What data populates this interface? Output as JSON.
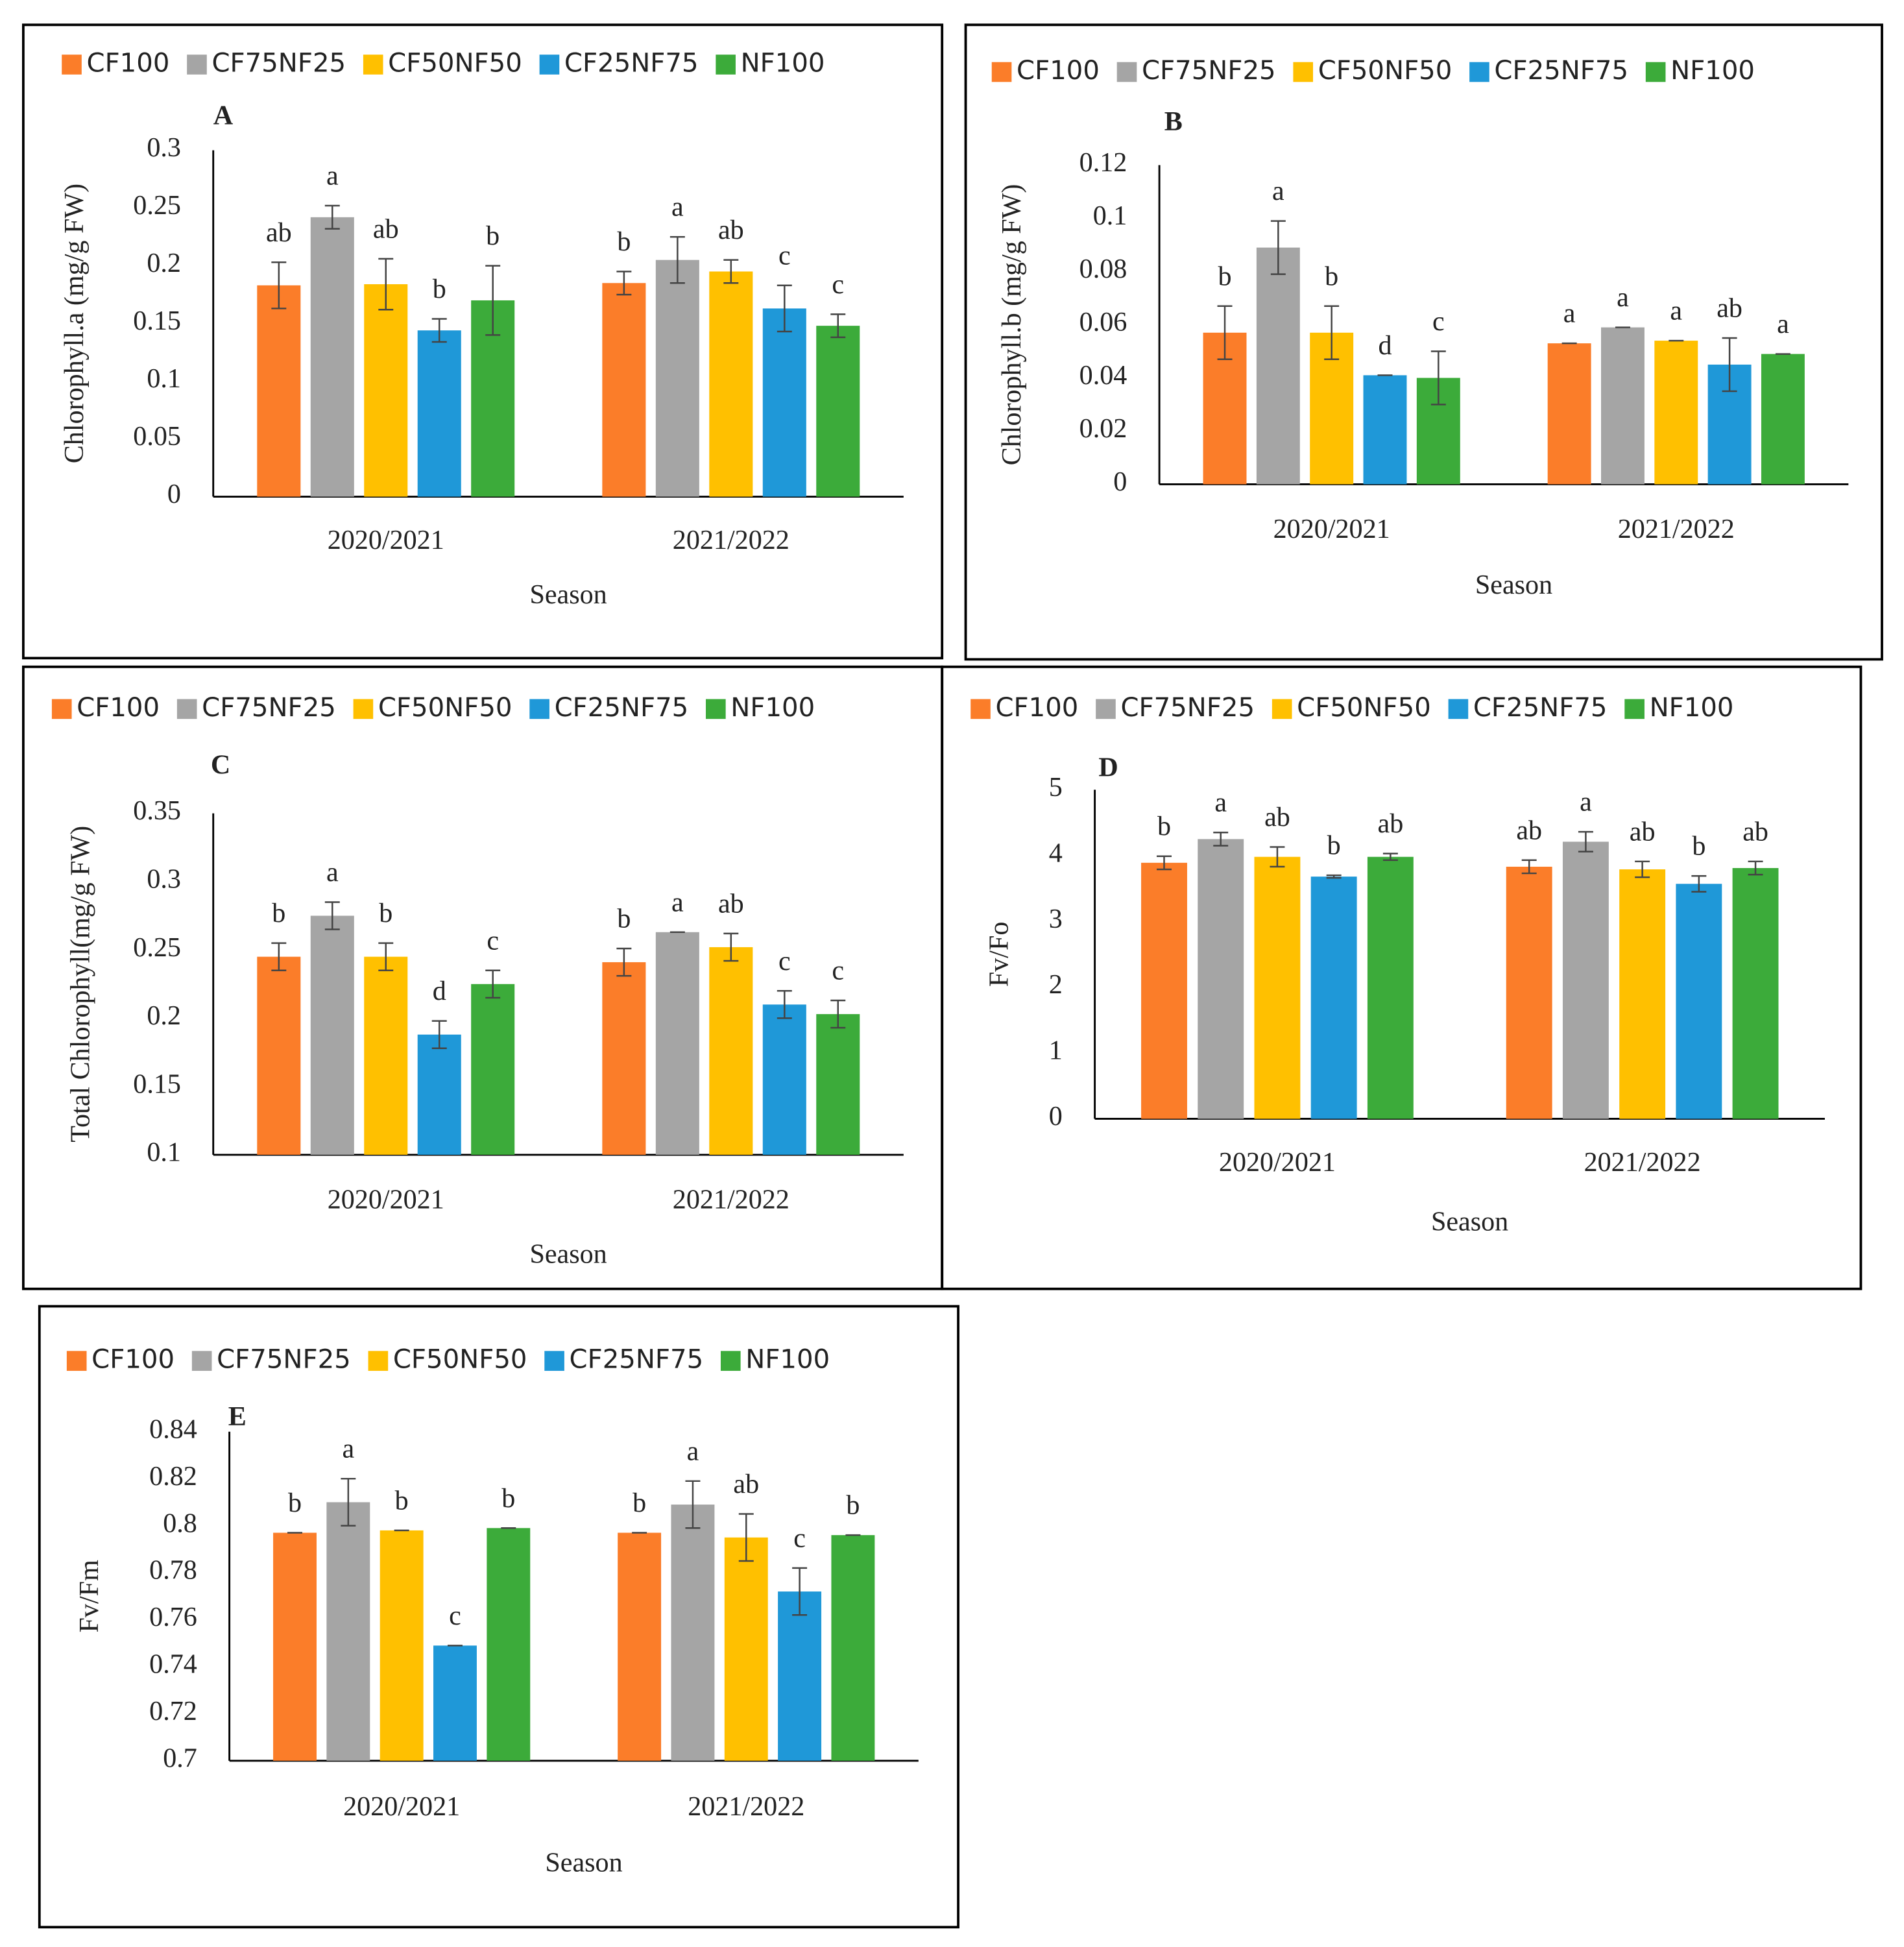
{
  "chart_data": [
    {
      "type": "bar",
      "panel_label": "A",
      "y_label": "Chlorophyll.a (mg/g FW)",
      "x_label": "Season",
      "categories": [
        "2020/2021",
        "2021/2022"
      ],
      "ylim": [
        0,
        0.3
      ],
      "yticks": [
        0,
        0.05,
        0.1,
        0.15,
        0.2,
        0.25,
        0.3
      ],
      "series": [
        {
          "name": "CF100",
          "color": "#fb7d29",
          "values": [
            0.183,
            0.185
          ],
          "errors": [
            0.02,
            0.01
          ],
          "letters": [
            "ab",
            "b"
          ]
        },
        {
          "name": "CF75NF25",
          "color": "#a5a5a5",
          "values": [
            0.242,
            0.205
          ],
          "errors": [
            0.01,
            0.02
          ],
          "letters": [
            "a",
            "a"
          ]
        },
        {
          "name": "CF50NF50",
          "color": "#ffc000",
          "values": [
            0.184,
            0.195
          ],
          "errors": [
            0.022,
            0.01
          ],
          "letters": [
            "ab",
            "ab"
          ]
        },
        {
          "name": "CF25NF75",
          "color": "#1f98d8",
          "values": [
            0.144,
            0.163
          ],
          "errors": [
            0.01,
            0.02
          ],
          "letters": [
            "b",
            "c"
          ]
        },
        {
          "name": "NF100",
          "color": "#3cab3a",
          "values": [
            0.17,
            0.148
          ],
          "errors": [
            0.03,
            0.01
          ],
          "letters": [
            "b",
            "c"
          ]
        }
      ]
    },
    {
      "type": "bar",
      "panel_label": "B",
      "y_label": "Chlorophyll.b (mg/g FW)",
      "x_label": "Season",
      "categories": [
        "2020/2021",
        "2021/2022"
      ],
      "ylim": [
        0,
        0.12
      ],
      "yticks": [
        0,
        0.02,
        0.04,
        0.06,
        0.08,
        0.1,
        0.12
      ],
      "series": [
        {
          "name": "CF100",
          "color": "#fb7d29",
          "values": [
            0.057,
            0.053
          ],
          "errors": [
            0.01,
            0
          ],
          "letters": [
            "b",
            "a"
          ]
        },
        {
          "name": "CF75NF25",
          "color": "#a5a5a5",
          "values": [
            0.089,
            0.059
          ],
          "errors": [
            0.01,
            0
          ],
          "letters": [
            "a",
            "a"
          ]
        },
        {
          "name": "CF50NF50",
          "color": "#ffc000",
          "values": [
            0.057,
            0.054
          ],
          "errors": [
            0.01,
            0
          ],
          "letters": [
            "b",
            "a"
          ]
        },
        {
          "name": "CF25NF75",
          "color": "#1f98d8",
          "values": [
            0.041,
            0.045
          ],
          "errors": [
            0,
            0.01
          ],
          "letters": [
            "d",
            "ab"
          ]
        },
        {
          "name": "NF100",
          "color": "#3cab3a",
          "values": [
            0.04,
            0.049
          ],
          "errors": [
            0.01,
            0
          ],
          "letters": [
            "c",
            "a"
          ]
        }
      ]
    },
    {
      "type": "bar",
      "panel_label": "C",
      "y_label": "Total Chlorophyll(mg/g FW)",
      "x_label": "Season",
      "categories": [
        "2020/2021",
        "2021/2022"
      ],
      "ylim": [
        0.1,
        0.35
      ],
      "yticks": [
        0.1,
        0.15,
        0.2,
        0.25,
        0.3,
        0.35
      ],
      "series": [
        {
          "name": "CF100",
          "color": "#fb7d29",
          "values": [
            0.245,
            0.241
          ],
          "errors": [
            0.01,
            0.01
          ],
          "letters": [
            "b",
            "b"
          ]
        },
        {
          "name": "CF75NF25",
          "color": "#a5a5a5",
          "values": [
            0.275,
            0.263
          ],
          "errors": [
            0.01,
            0
          ],
          "letters": [
            "a",
            "a"
          ]
        },
        {
          "name": "CF50NF50",
          "color": "#ffc000",
          "values": [
            0.245,
            0.252
          ],
          "errors": [
            0.01,
            0.01
          ],
          "letters": [
            "b",
            "ab"
          ]
        },
        {
          "name": "CF25NF75",
          "color": "#1f98d8",
          "values": [
            0.188,
            0.21
          ],
          "errors": [
            0.01,
            0.01
          ],
          "letters": [
            "d",
            "c"
          ]
        },
        {
          "name": "NF100",
          "color": "#3cab3a",
          "values": [
            0.225,
            0.203
          ],
          "errors": [
            0.01,
            0.01
          ],
          "letters": [
            "c",
            "c"
          ]
        }
      ]
    },
    {
      "type": "bar",
      "panel_label": "D",
      "y_label": "Fv/Fo",
      "x_label": "Season",
      "categories": [
        "2020/2021",
        "2021/2022"
      ],
      "ylim": [
        0,
        5
      ],
      "yticks": [
        0,
        1,
        2,
        3,
        4,
        5
      ],
      "series": [
        {
          "name": "CF100",
          "color": "#fb7d29",
          "values": [
            3.89,
            3.83
          ],
          "errors": [
            0.1,
            0.1
          ],
          "letters": [
            "b",
            "ab"
          ]
        },
        {
          "name": "CF75NF25",
          "color": "#a5a5a5",
          "values": [
            4.25,
            4.21
          ],
          "errors": [
            0.1,
            0.15
          ],
          "letters": [
            "a",
            "a"
          ]
        },
        {
          "name": "CF50NF50",
          "color": "#ffc000",
          "values": [
            3.98,
            3.79
          ],
          "errors": [
            0.15,
            0.12
          ],
          "letters": [
            "ab",
            "ab"
          ]
        },
        {
          "name": "CF25NF75",
          "color": "#1f98d8",
          "values": [
            3.68,
            3.57
          ],
          "errors": [
            0.02,
            0.12
          ],
          "letters": [
            "b",
            "b"
          ]
        },
        {
          "name": "NF100",
          "color": "#3cab3a",
          "values": [
            3.98,
            3.81
          ],
          "errors": [
            0.05,
            0.1
          ],
          "letters": [
            "ab",
            "ab"
          ]
        }
      ]
    },
    {
      "type": "bar",
      "panel_label": "E",
      "y_label": "Fv/Fm",
      "x_label": "Season",
      "categories": [
        "2020/2021",
        "2021/2022"
      ],
      "ylim": [
        0.7,
        0.84
      ],
      "yticks": [
        0.7,
        0.72,
        0.74,
        0.76,
        0.78,
        0.8,
        0.82,
        0.84
      ],
      "series": [
        {
          "name": "CF100",
          "color": "#fb7d29",
          "values": [
            0.797,
            0.797
          ],
          "errors": [
            0,
            0
          ],
          "letters": [
            "b",
            "b"
          ]
        },
        {
          "name": "CF75NF25",
          "color": "#a5a5a5",
          "values": [
            0.81,
            0.809
          ],
          "errors": [
            0.01,
            0.01
          ],
          "letters": [
            "a",
            "a"
          ]
        },
        {
          "name": "CF50NF50",
          "color": "#ffc000",
          "values": [
            0.798,
            0.795
          ],
          "errors": [
            0,
            0.01
          ],
          "letters": [
            "b",
            "ab"
          ]
        },
        {
          "name": "CF25NF75",
          "color": "#1f98d8",
          "values": [
            0.749,
            0.772
          ],
          "errors": [
            0,
            0.01
          ],
          "letters": [
            "c",
            "c"
          ]
        },
        {
          "name": "NF100",
          "color": "#3cab3a",
          "values": [
            0.799,
            0.796
          ],
          "errors": [
            0,
            0
          ],
          "letters": [
            "b",
            "b"
          ]
        }
      ]
    }
  ]
}
